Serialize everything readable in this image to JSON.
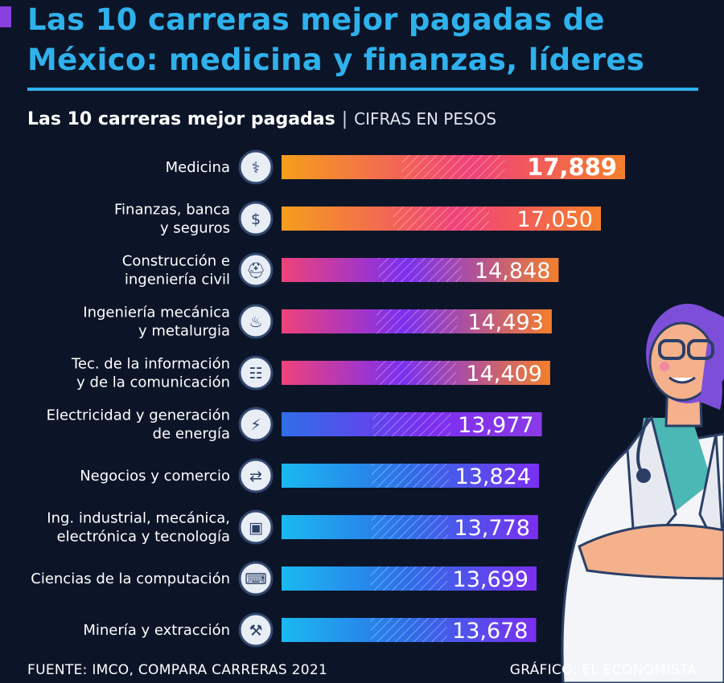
{
  "header": {
    "title_line1": "Las 10 carreras mejor pagadas de",
    "title_line2": "México: medicina y finanzas, líderes",
    "subtitle_bold": "Las 10 carreras mejor pagadas",
    "subtitle_sep": "|",
    "subtitle_units": "CIFRAS EN PESOS"
  },
  "footer": {
    "source": "FUENTE: IMCO, COMPARA CARRERAS 2021",
    "credit": "GRÁFICO: EL ECONOMISTA"
  },
  "colors": {
    "background": "#0c1528",
    "title": "#2fb1ec",
    "top_bars": [
      "#f59e1b",
      "#f0427a",
      "#7b2ff0"
    ],
    "bottom_bars": [
      "#1ab9f0",
      "#2f6ee8",
      "#7b2ff0"
    ]
  },
  "chart_data": {
    "type": "bar",
    "orientation": "horizontal",
    "categories": [
      [
        "Medicina"
      ],
      [
        "Finanzas, banca",
        "y seguros"
      ],
      [
        "Construcción e",
        "ingeniería civil"
      ],
      [
        "Ingeniería mecánica",
        "y metalurgia"
      ],
      [
        "Tec. de la información",
        "y de la comunicación"
      ],
      [
        "Electricidad y generación",
        "de energía"
      ],
      [
        "Negocios y comercio"
      ],
      [
        "Ing. industrial, mecánica,",
        "electrónica y tecnología"
      ],
      [
        "Ciencias de la computación"
      ],
      [
        "Minería y extracción"
      ]
    ],
    "values": [
      17889,
      17050,
      14848,
      14493,
      14409,
      13977,
      13824,
      13778,
      13699,
      13678
    ],
    "value_labels": [
      "17,889",
      "17,050",
      "14,848",
      "14,493",
      "14,409",
      "13,977",
      "13,824",
      "13,778",
      "13,699",
      "13,678"
    ],
    "icons": [
      "doctor-icon",
      "finance-document-icon",
      "construction-worker-icon",
      "furnace-icon",
      "data-monitor-icon",
      "power-plug-icon",
      "handshake-coin-icon",
      "microchip-icon",
      "computer-icon",
      "mining-pickaxe-icon"
    ],
    "title": "Las 10 carreras mejor pagadas",
    "xlabel": "",
    "ylabel": "",
    "grid": false,
    "legend": "none"
  },
  "illustration": {
    "name": "doctor-illustration"
  }
}
